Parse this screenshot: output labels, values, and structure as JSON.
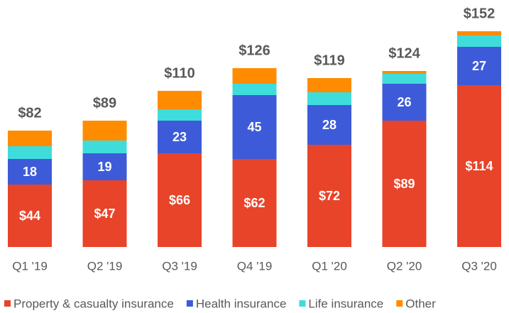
{
  "chart_data": {
    "type": "stacked_bar",
    "categories": [
      "Q1 '19",
      "Q2 '19",
      "Q3 '19",
      "Q4 '19",
      "Q1 '20",
      "Q2 '20",
      "Q3 '20"
    ],
    "series": [
      {
        "name": "Property & casualty insurance",
        "color": "#e8442a",
        "values": [
          44,
          47,
          66,
          62,
          72,
          89,
          114
        ],
        "value_labels": [
          "$44",
          "$47",
          "$66",
          "$62",
          "$72",
          "$89",
          "$114"
        ],
        "data_labels": true
      },
      {
        "name": "Health insurance",
        "color": "#3d5bd9",
        "values": [
          18,
          19,
          23,
          45,
          28,
          26,
          27
        ],
        "data_labels": true
      },
      {
        "name": "Life insurance",
        "color": "#3fdcdc",
        "values": [
          9,
          9,
          8,
          8,
          9,
          7,
          8
        ],
        "data_labels": false
      },
      {
        "name": "Other",
        "color": "#ff8c00",
        "values": [
          11,
          14,
          13,
          11,
          10,
          2,
          3
        ],
        "data_labels": false
      }
    ],
    "totals": [
      82,
      89,
      110,
      126,
      119,
      124,
      152
    ],
    "total_labels": [
      "$82",
      "$89",
      "$110",
      "$126",
      "$119",
      "$124",
      "$152"
    ],
    "ylim": [
      0,
      160
    ],
    "legend": "bottom"
  }
}
